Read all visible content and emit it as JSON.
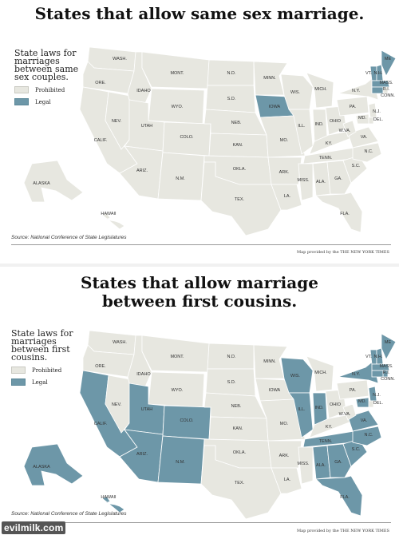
{
  "colors": {
    "prohibited": "#e7e7e0",
    "legal": "#6d97a8",
    "border": "#ffffff"
  },
  "maps": [
    {
      "title_lines": [
        "States that allow same sex marriage."
      ],
      "legend_heading": "State laws for marriages between same sex couples.",
      "legend_items": [
        {
          "label": "Prohibited",
          "status": "prohibited"
        },
        {
          "label": "Legal",
          "status": "legal"
        }
      ],
      "legal_states": [
        "IA",
        "VT",
        "NH",
        "MA",
        "CT",
        "ME"
      ],
      "source": "Source: National Conference of State Legislatures",
      "credit": "Map provided by the THE NEW YORK TIMES"
    },
    {
      "title_lines": [
        "States that allow marriage",
        "between first cousins."
      ],
      "legend_heading": "State laws for marriages between first cousins.",
      "legend_items": [
        {
          "label": "Prohibited",
          "status": "prohibited"
        },
        {
          "label": "Legal",
          "status": "legal"
        }
      ],
      "legal_states": [
        "CA",
        "UT",
        "CO",
        "AZ",
        "NM",
        "TX_NO",
        "WI",
        "IL",
        "IN",
        "TN",
        "AL",
        "GA",
        "SC",
        "NC",
        "VA",
        "MD",
        "NJ",
        "NY",
        "VT",
        "NH",
        "ME",
        "MA",
        "RI",
        "CT",
        "FL",
        "AK",
        "HI"
      ],
      "source": "Source: National Conference of State Legislatures",
      "credit": "Map provided by the THE NEW YORK TIMES"
    }
  ],
  "state_labels": {
    "WA": "WASH.",
    "OR": "ORE.",
    "CA": "CALIF.",
    "NV": "NEV.",
    "ID": "IDAHO",
    "MT": "MONT.",
    "WY": "WYO.",
    "UT": "UTAH",
    "CO": "COLO.",
    "AZ": "ARIZ.",
    "NM": "N.M.",
    "ND": "N.D.",
    "SD": "S.D.",
    "NE": "NEB.",
    "KS": "KAN.",
    "OK": "OKLA.",
    "TX": "TEX.",
    "MN": "MINN.",
    "IA": "IOWA",
    "MO": "MO.",
    "AR": "ARK.",
    "LA": "LA.",
    "WI": "WIS.",
    "IL": "ILL.",
    "MI": "MICH.",
    "IN": "IND.",
    "OH": "OHIO",
    "KY": "KY.",
    "TN": "TENN.",
    "MS": "MISS.",
    "AL": "ALA.",
    "GA": "GA.",
    "FL": "FLA.",
    "SC": "S.C.",
    "NC": "N.C.",
    "VA": "VA.",
    "WV": "W.VA.",
    "PA": "PA.",
    "NY": "N.Y.",
    "VT": "VT.",
    "NH": "N.H.",
    "ME": "ME",
    "MA": "MASS.",
    "RI": "R.I.",
    "CT": "CONN.",
    "NJ": "N.J.",
    "DE": "DEL.",
    "MD": "MD.",
    "AK": "ALASKA",
    "HI": "HAWAII"
  },
  "watermark": "evilmilk.com"
}
